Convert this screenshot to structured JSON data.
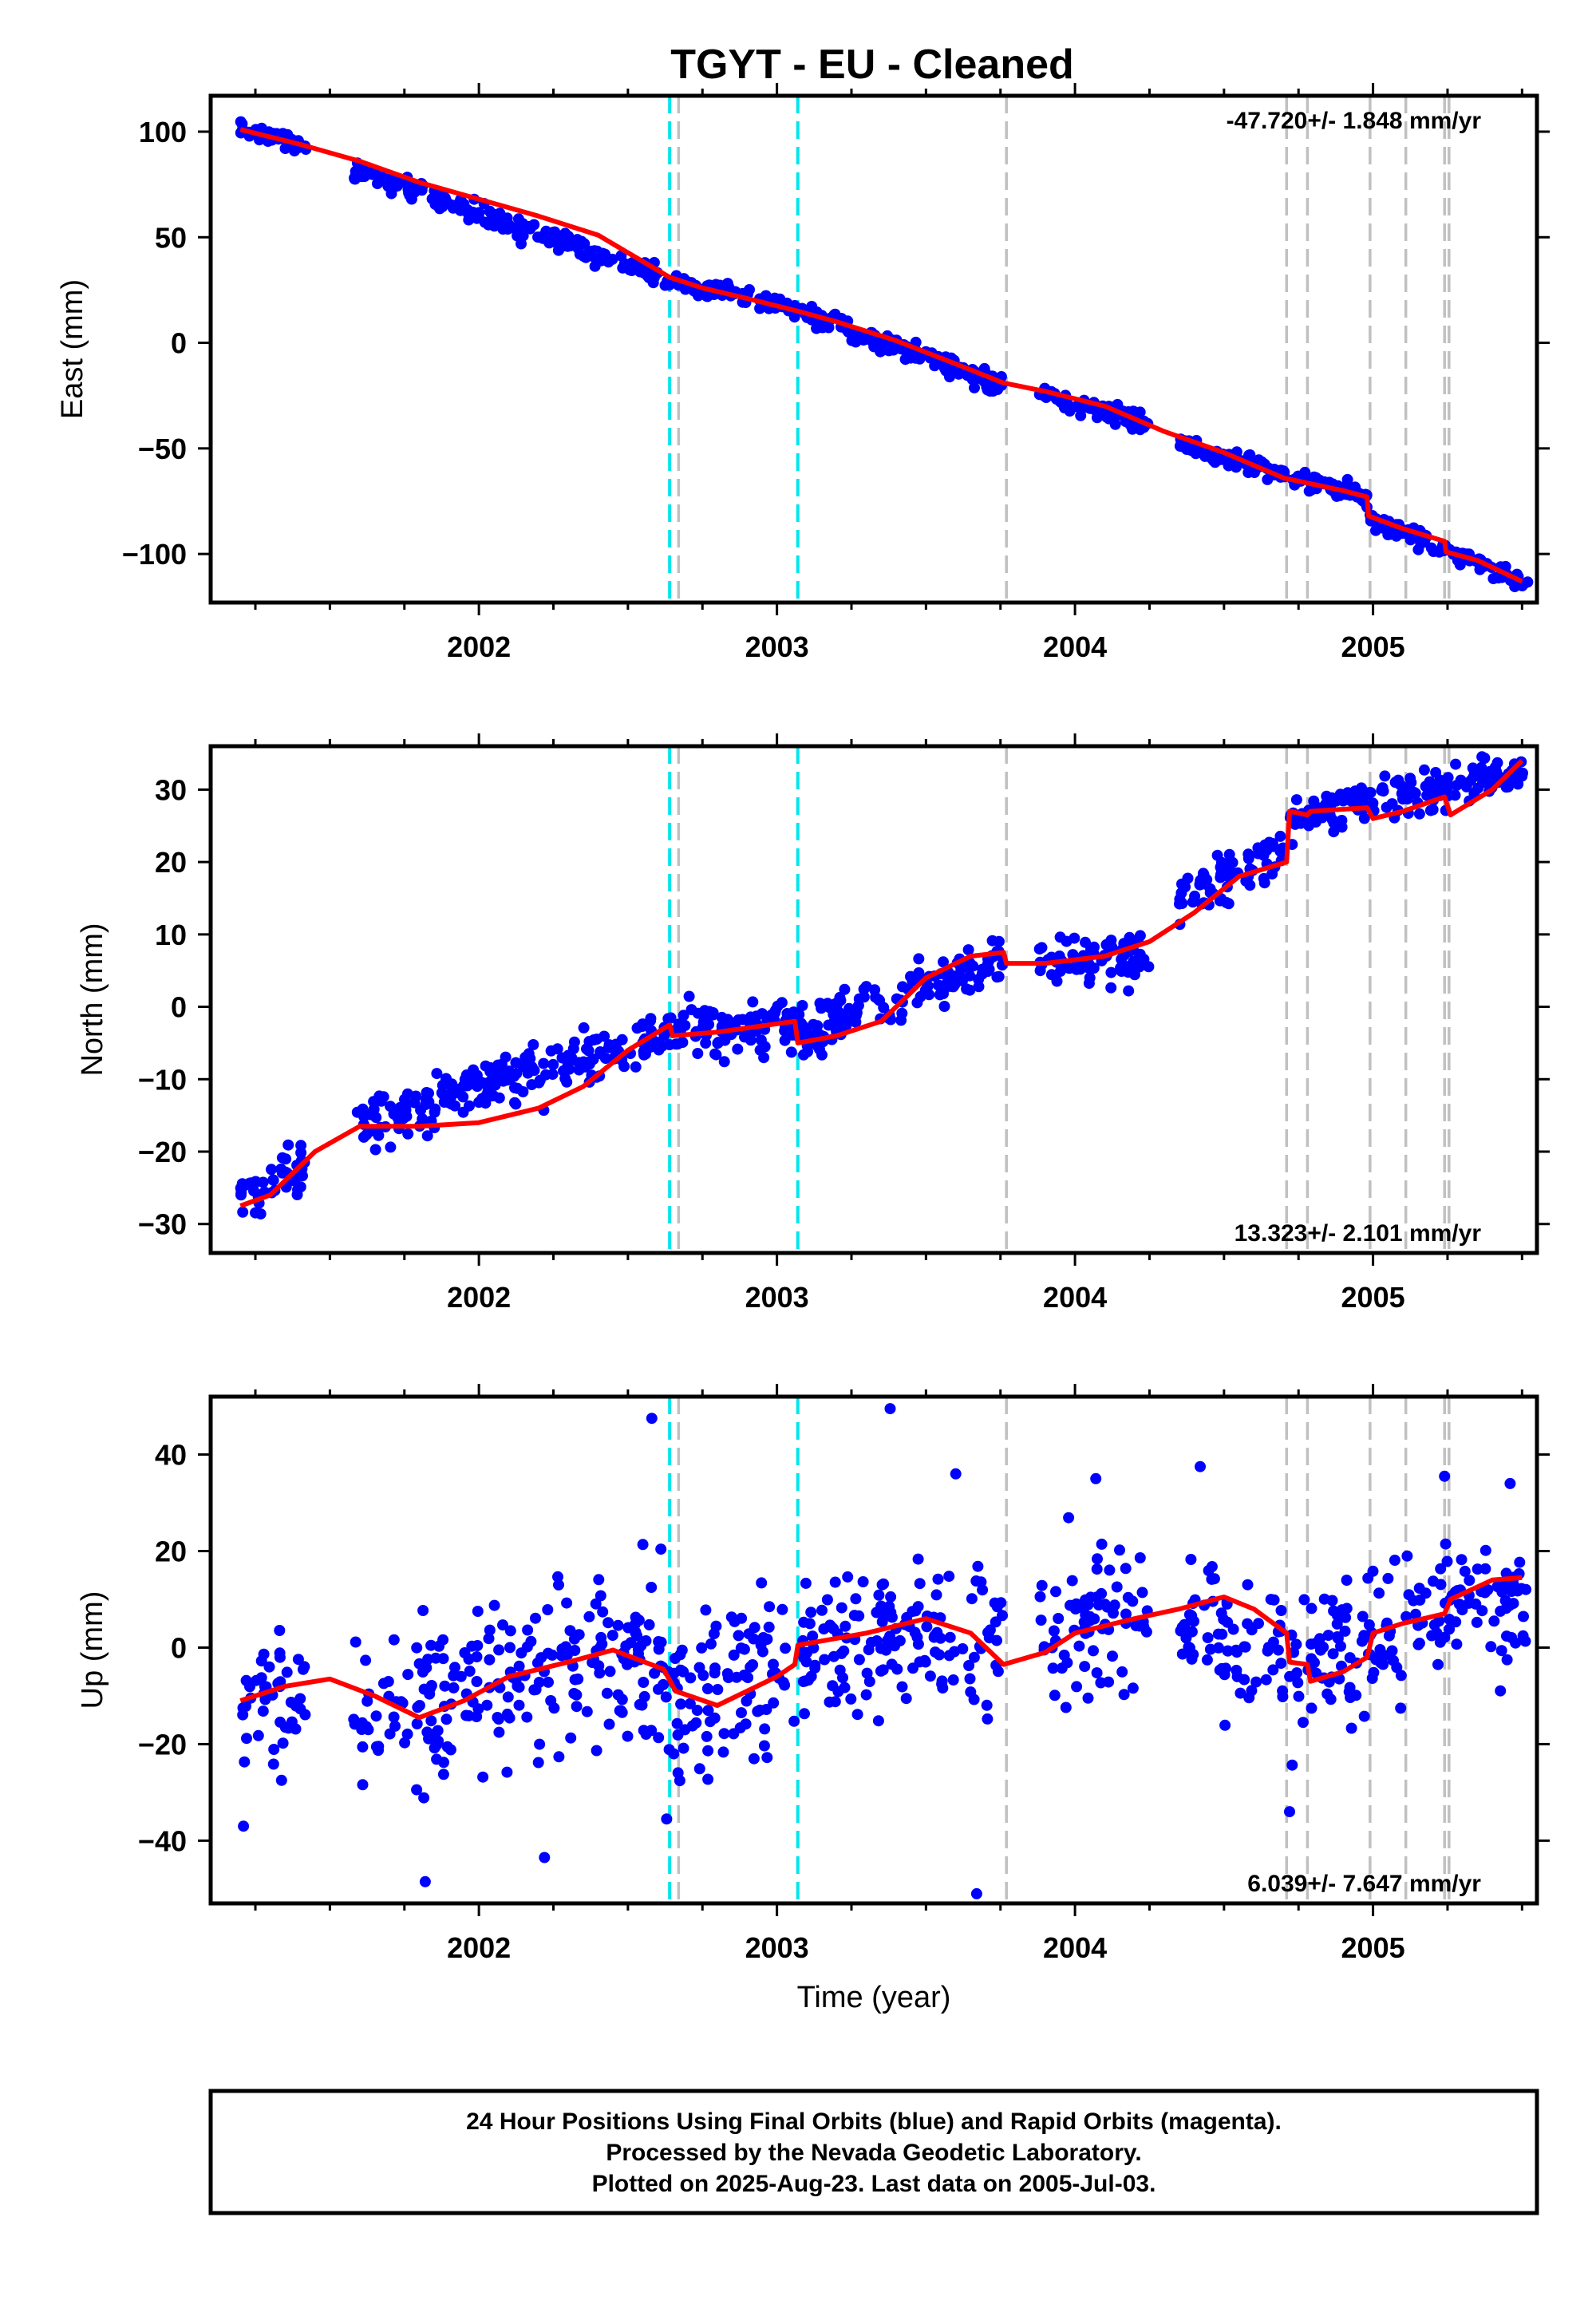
{
  "title": "TGYT  - EU - Cleaned",
  "footer": {
    "lines": [
      "24 Hour Positions Using Final Orbits (blue) and Rapid Orbits (magenta).",
      "Processed by the Nevada Geodetic Laboratory.",
      "Plotted on 2025-Aug-23. Last data on 2005-Jul-03."
    ]
  },
  "colors": {
    "points": "#0000ff",
    "model": "#ff0000",
    "equipment_change": "#00e5ee",
    "event": "#c0c0c0"
  },
  "chart_data": [
    {
      "type": "scatter",
      "ylabel": "East (mm)",
      "xlabel": "",
      "xlim": [
        2001.1,
        2005.55
      ],
      "ylim": [
        -123,
        117
      ],
      "xticks": [
        2002,
        2003,
        2004,
        2005
      ],
      "yticks": [
        100,
        50,
        0,
        -50,
        -100
      ],
      "ytick_labels": [
        "100",
        "50",
        "0",
        "−50",
        "−100"
      ],
      "rate_label": "-47.720+/- 1.848 mm/yr",
      "rate_position": "top-right",
      "model_curve": [
        [
          2001.2,
          101
        ],
        [
          2001.4,
          94
        ],
        [
          2001.6,
          86
        ],
        [
          2001.8,
          76
        ],
        [
          2002.0,
          68
        ],
        [
          2002.2,
          60
        ],
        [
          2002.4,
          51
        ],
        [
          2002.64,
          31
        ],
        [
          2002.75,
          26
        ],
        [
          2002.9,
          21
        ],
        [
          2003.07,
          15
        ],
        [
          2003.2,
          10
        ],
        [
          2003.4,
          1
        ],
        [
          2003.6,
          -10
        ],
        [
          2003.76,
          -19
        ],
        [
          2003.9,
          -23
        ],
        [
          2004.1,
          -30
        ],
        [
          2004.3,
          -42
        ],
        [
          2004.5,
          -52
        ],
        [
          2004.7,
          -64
        ],
        [
          2004.9,
          -70
        ],
        [
          2004.98,
          -73
        ],
        [
          2004.985,
          -82
        ],
        [
          2005.1,
          -88
        ],
        [
          2005.24,
          -94
        ],
        [
          2005.245,
          -99
        ],
        [
          2005.35,
          -103
        ],
        [
          2005.5,
          -113
        ]
      ],
      "segments": [
        [
          2001.2,
          2001.42,
          101,
          93,
          3
        ],
        [
          2001.58,
          2002.62,
          82,
          31,
          3.5
        ],
        [
          2002.62,
          2003.06,
          30,
          16,
          3
        ],
        [
          2003.06,
          2003.76,
          16,
          -21,
          3.5
        ],
        [
          2003.88,
          2004.25,
          -23,
          -39,
          3
        ],
        [
          2004.35,
          2004.98,
          -48,
          -73,
          3
        ],
        [
          2004.99,
          2005.52,
          -83,
          -114,
          3
        ]
      ],
      "equipment_changes": [
        2002.64,
        2003.07
      ],
      "events": [
        2002.67,
        2003.77,
        2004.71,
        2004.78,
        2004.99,
        2005.11,
        2005.24,
        2005.255
      ]
    },
    {
      "type": "scatter",
      "ylabel": "North (mm)",
      "xlabel": "",
      "xlim": [
        2001.1,
        2005.55
      ],
      "ylim": [
        -34,
        36
      ],
      "xticks": [
        2002,
        2003,
        2004,
        2005
      ],
      "yticks": [
        30,
        20,
        10,
        0,
        -10,
        -20,
        -30
      ],
      "ytick_labels": [
        "30",
        "20",
        "10",
        "0",
        "−10",
        "−20",
        "−30"
      ],
      "rate_label": "13.323+/- 2.101 mm/yr",
      "rate_position": "bottom-right",
      "model_curve": [
        [
          2001.2,
          -27.5
        ],
        [
          2001.3,
          -26
        ],
        [
          2001.45,
          -20
        ],
        [
          2001.6,
          -16.5
        ],
        [
          2001.8,
          -16.5
        ],
        [
          2002.0,
          -16
        ],
        [
          2002.2,
          -14
        ],
        [
          2002.35,
          -11
        ],
        [
          2002.5,
          -6
        ],
        [
          2002.62,
          -3
        ],
        [
          2002.64,
          -2.5
        ],
        [
          2002.65,
          -4
        ],
        [
          2002.8,
          -3.5
        ],
        [
          2003.06,
          -2
        ],
        [
          2003.07,
          -5
        ],
        [
          2003.2,
          -4
        ],
        [
          2003.35,
          -2
        ],
        [
          2003.5,
          4
        ],
        [
          2003.65,
          7
        ],
        [
          2003.76,
          7.5
        ],
        [
          2003.77,
          6
        ],
        [
          2003.9,
          6
        ],
        [
          2004.1,
          7
        ],
        [
          2004.25,
          9
        ],
        [
          2004.4,
          13
        ],
        [
          2004.55,
          18
        ],
        [
          2004.71,
          20
        ],
        [
          2004.72,
          27
        ],
        [
          2004.78,
          26.5
        ],
        [
          2004.79,
          27
        ],
        [
          2004.98,
          27.5
        ],
        [
          2005.0,
          26
        ],
        [
          2005.1,
          27
        ],
        [
          2005.24,
          29
        ],
        [
          2005.26,
          26.5
        ],
        [
          2005.4,
          30
        ],
        [
          2005.5,
          34
        ]
      ],
      "segments": [
        [
          2001.2,
          2001.42,
          -26,
          -22,
          2.5
        ],
        [
          2001.58,
          2002.62,
          -16,
          -4,
          2.5
        ],
        [
          2002.62,
          2003.06,
          -3,
          -3,
          2.5
        ],
        [
          2003.07,
          2003.76,
          -4,
          7,
          2.5
        ],
        [
          2003.88,
          2004.25,
          6,
          7,
          2.5
        ],
        [
          2004.35,
          2004.7,
          15,
          22,
          2.5
        ],
        [
          2004.72,
          2005.52,
          26,
          33,
          2
        ]
      ],
      "equipment_changes": [
        2002.64,
        2003.07
      ],
      "events": [
        2002.67,
        2003.77,
        2004.71,
        2004.78,
        2004.99,
        2005.11,
        2005.24,
        2005.255
      ]
    },
    {
      "type": "scatter",
      "ylabel": "Up (mm)",
      "xlabel": "Time (year)",
      "xlim": [
        2001.1,
        2005.55
      ],
      "ylim": [
        -53,
        52
      ],
      "xticks": [
        2002,
        2003,
        2004,
        2005
      ],
      "yticks": [
        40,
        20,
        0,
        -20,
        -40
      ],
      "ytick_labels": [
        "40",
        "20",
        "0",
        "−20",
        "−40"
      ],
      "rate_label": "6.039+/- 7.647 mm/yr",
      "rate_position": "bottom-right",
      "model_curve": [
        [
          2001.2,
          -11
        ],
        [
          2001.35,
          -8
        ],
        [
          2001.5,
          -6.5
        ],
        [
          2001.65,
          -10
        ],
        [
          2001.8,
          -14.5
        ],
        [
          2001.95,
          -11
        ],
        [
          2002.1,
          -6
        ],
        [
          2002.3,
          -3
        ],
        [
          2002.45,
          -0.5
        ],
        [
          2002.62,
          -4.5
        ],
        [
          2002.66,
          -9
        ],
        [
          2002.8,
          -12
        ],
        [
          2003.0,
          -6
        ],
        [
          2003.06,
          -3.5
        ],
        [
          2003.07,
          0.5
        ],
        [
          2003.3,
          3
        ],
        [
          2003.5,
          6
        ],
        [
          2003.65,
          3
        ],
        [
          2003.76,
          -3.5
        ],
        [
          2003.9,
          -1
        ],
        [
          2004.0,
          3
        ],
        [
          2004.2,
          6
        ],
        [
          2004.35,
          8
        ],
        [
          2004.5,
          10.5
        ],
        [
          2004.6,
          8
        ],
        [
          2004.71,
          3
        ],
        [
          2004.72,
          -3
        ],
        [
          2004.78,
          -3.5
        ],
        [
          2004.79,
          -7
        ],
        [
          2004.9,
          -5
        ],
        [
          2004.98,
          -2
        ],
        [
          2005.0,
          3
        ],
        [
          2005.1,
          5
        ],
        [
          2005.24,
          7
        ],
        [
          2005.26,
          10
        ],
        [
          2005.4,
          14
        ],
        [
          2005.5,
          14.5
        ]
      ],
      "segments": [
        [
          2001.2,
          2001.42,
          -10,
          -12,
          9
        ],
        [
          2001.58,
          2002.62,
          -14,
          0,
          12
        ],
        [
          2002.62,
          2003.06,
          -11,
          -5,
          11
        ],
        [
          2003.07,
          2003.76,
          1,
          3,
          11
        ],
        [
          2003.88,
          2004.25,
          4,
          7,
          11
        ],
        [
          2004.35,
          2004.7,
          5,
          0,
          10
        ],
        [
          2004.72,
          2005.52,
          -4,
          14,
          10
        ]
      ],
      "outliers": [
        [
          2002.58,
          47.5
        ],
        [
          2003.38,
          49.5
        ],
        [
          2003.67,
          -51
        ],
        [
          2001.82,
          -48.5
        ],
        [
          2002.22,
          -43.5
        ],
        [
          2004.72,
          -34
        ],
        [
          2002.63,
          -35.5
        ],
        [
          2001.21,
          -37
        ],
        [
          2004.42,
          37.5
        ],
        [
          2003.6,
          36
        ],
        [
          2004.07,
          35
        ],
        [
          2005.24,
          35.5
        ],
        [
          2005.46,
          34
        ]
      ],
      "equipment_changes": [
        2002.64,
        2003.07
      ],
      "events": [
        2002.67,
        2003.77,
        2004.71,
        2004.78,
        2004.99,
        2005.11,
        2005.24,
        2005.255
      ]
    }
  ]
}
